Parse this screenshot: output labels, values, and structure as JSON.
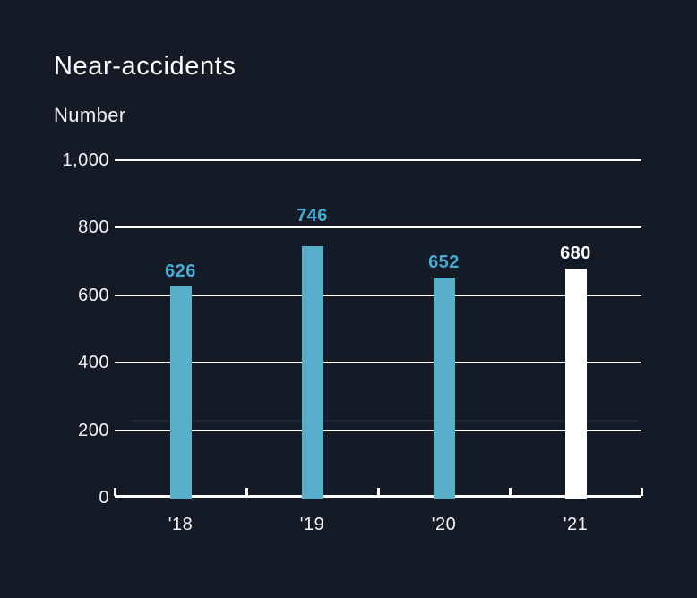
{
  "page": {
    "background_color": "#141B27"
  },
  "chart_data": {
    "type": "bar",
    "title": "Near-accidents",
    "ylabel": "Number",
    "xlabel": "",
    "categories": [
      "'18",
      "'19",
      "'20",
      "'21"
    ],
    "values": [
      626,
      746,
      652,
      680
    ],
    "value_labels": [
      "626",
      "746",
      "652",
      "680"
    ],
    "bar_colors": [
      "#58AFCA",
      "#58AFCA",
      "#58AFCA",
      "#FFFFFF"
    ],
    "value_label_colors": [
      "#45ADD4",
      "#45ADD4",
      "#45ADD4",
      "#FFFFFF"
    ],
    "ylim": [
      0,
      1000
    ],
    "yticks": [
      0,
      200,
      400,
      600,
      800,
      1000
    ],
    "ytick_labels": [
      "0",
      "200",
      "400",
      "600",
      "800",
      "1,000"
    ],
    "grid": true,
    "gridline_color": "#FFFFFF",
    "axis_color": "#FFFFFF",
    "legend": "none",
    "annotations": [
      {
        "type": "faint-reference-line",
        "approx_value": 227,
        "color": "#1E2734"
      }
    ]
  }
}
